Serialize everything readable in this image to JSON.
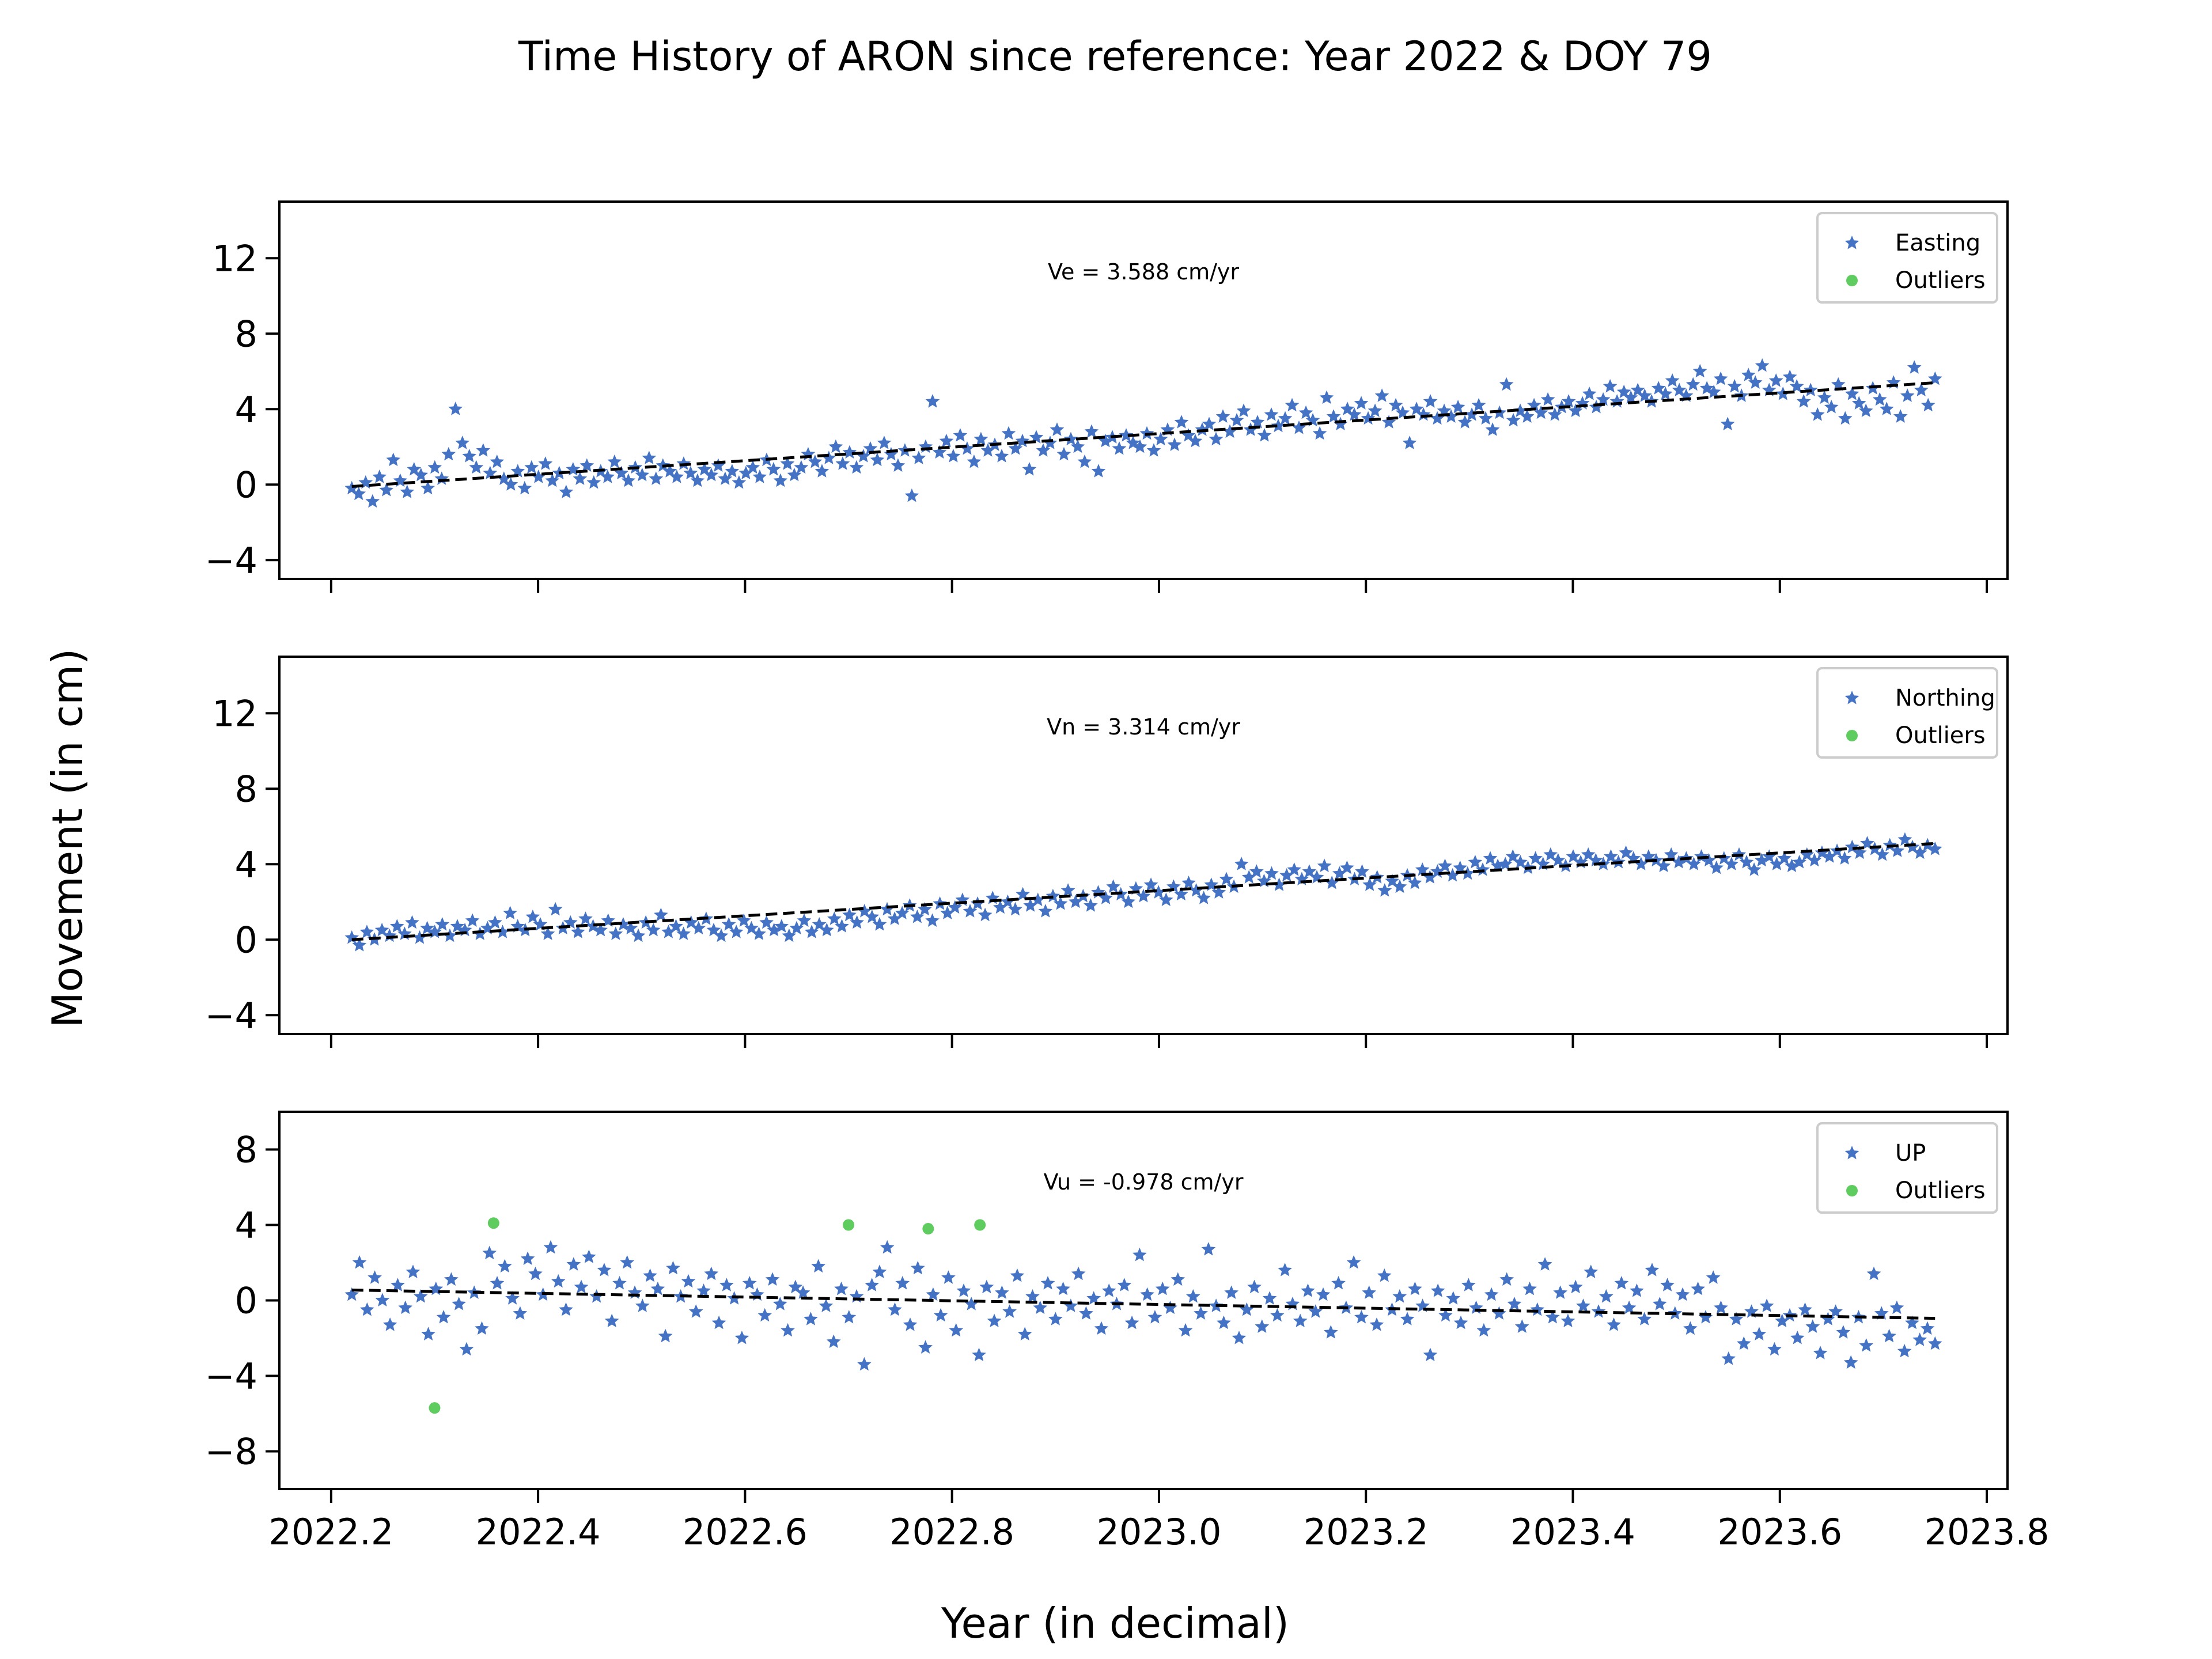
{
  "figure": {
    "title": "Time History of ARON since reference: Year 2022 & DOY 79",
    "xlabel": "Year (in decimal)",
    "ylabel": "Movement (in cm)"
  },
  "chart_data": [
    {
      "type": "scatter",
      "component": "east",
      "xlim": [
        2022.15,
        2023.82
      ],
      "ylim": [
        -5,
        15
      ],
      "yticks": [
        -4,
        0,
        4,
        8,
        12
      ],
      "ytick_labels": [
        "−4",
        "0",
        "4",
        "8",
        "12"
      ],
      "xticks": [
        2022.2,
        2022.4,
        2022.6,
        2022.8,
        2023.0,
        2023.2,
        2023.4,
        2023.6,
        2023.8
      ],
      "show_xtick_labels": false,
      "annotation": "Ve =  3.588 cm/yr",
      "legend": {
        "position": "top-right",
        "entries": [
          "Easting",
          "Outliers"
        ]
      },
      "series": [
        {
          "name": "Easting",
          "marker": "star",
          "color": "#4472c4",
          "x_start": 2022.22,
          "x_end": 2023.75,
          "values": [
            -0.2,
            -0.5,
            0.1,
            -0.9,
            0.4,
            -0.3,
            1.3,
            0.2,
            -0.4,
            0.8,
            0.5,
            -0.2,
            0.9,
            0.3,
            1.6,
            4.0,
            2.2,
            1.5,
            0.9,
            1.8,
            0.6,
            1.2,
            0.3,
            0.0,
            0.7,
            -0.2,
            0.9,
            0.4,
            1.1,
            0.2,
            0.6,
            -0.4,
            0.8,
            0.3,
            1.0,
            0.1,
            0.7,
            0.4,
            1.2,
            0.6,
            0.2,
            0.9,
            0.5,
            1.4,
            0.3,
            1.0,
            0.7,
            0.4,
            1.1,
            0.6,
            0.2,
            0.8,
            0.5,
            1.0,
            0.3,
            0.7,
            0.1,
            0.6,
            0.9,
            0.4,
            1.3,
            0.8,
            0.2,
            1.1,
            0.5,
            0.9,
            1.6,
            1.2,
            0.7,
            1.4,
            2.0,
            1.1,
            1.7,
            0.9,
            1.5,
            1.9,
            1.3,
            2.2,
            1.6,
            1.0,
            1.8,
            -0.6,
            1.4,
            2.0,
            4.4,
            1.7,
            2.3,
            1.5,
            2.6,
            1.9,
            1.2,
            2.4,
            1.8,
            2.1,
            1.5,
            2.7,
            1.9,
            2.3,
            0.8,
            2.5,
            1.8,
            2.2,
            2.9,
            1.6,
            2.4,
            2.0,
            1.2,
            2.8,
            0.7,
            2.3,
            2.5,
            1.9,
            2.6,
            2.2,
            2.0,
            2.7,
            1.8,
            2.4,
            2.9,
            2.1,
            3.3,
            2.6,
            2.3,
            2.9,
            3.2,
            2.4,
            3.6,
            2.8,
            3.4,
            3.9,
            2.9,
            3.3,
            2.6,
            3.7,
            3.1,
            3.5,
            4.2,
            3.0,
            3.8,
            3.4,
            2.7,
            4.6,
            3.6,
            3.2,
            4.0,
            3.7,
            4.3,
            3.5,
            3.9,
            4.7,
            3.3,
            4.2,
            3.8,
            2.2,
            4.0,
            3.7,
            4.4,
            3.5,
            3.9,
            3.6,
            4.1,
            3.3,
            3.7,
            4.2,
            3.5,
            2.9,
            3.8,
            5.3,
            3.4,
            3.9,
            3.6,
            4.2,
            3.8,
            4.5,
            3.7,
            4.1,
            4.4,
            3.9,
            4.3,
            4.8,
            4.1,
            4.5,
            5.2,
            4.4,
            4.9,
            4.6,
            5.0,
            4.7,
            4.4,
            5.1,
            4.8,
            5.5,
            5.0,
            4.7,
            5.3,
            6.0,
            5.1,
            4.9,
            5.6,
            3.2,
            5.2,
            4.7,
            5.8,
            5.4,
            6.3,
            5.0,
            5.5,
            4.8,
            5.7,
            5.2,
            4.4,
            5.0,
            3.7,
            4.6,
            4.1,
            5.3,
            3.5,
            4.8,
            4.3,
            3.9,
            5.1,
            4.5,
            4.0,
            5.4,
            3.6,
            4.7,
            6.2,
            5.0,
            4.2,
            5.6
          ]
        }
      ],
      "outliers": [],
      "trend": {
        "x": [
          2022.22,
          2023.75
        ],
        "y": [
          -0.1,
          5.4
        ],
        "style": "dashed",
        "color": "#000000"
      }
    },
    {
      "type": "scatter",
      "component": "north",
      "xlim": [
        2022.15,
        2023.82
      ],
      "ylim": [
        -5,
        15
      ],
      "yticks": [
        -4,
        0,
        4,
        8,
        12
      ],
      "ytick_labels": [
        "−4",
        "0",
        "4",
        "8",
        "12"
      ],
      "xticks": [
        2022.2,
        2022.4,
        2022.6,
        2022.8,
        2023.0,
        2023.2,
        2023.4,
        2023.6,
        2023.8
      ],
      "show_xtick_labels": false,
      "annotation": "Vn =  3.314 cm/yr",
      "legend": {
        "position": "top-right",
        "entries": [
          "Northing",
          "Outliers"
        ]
      },
      "series": [
        {
          "name": "Northing",
          "marker": "star",
          "color": "#4472c4",
          "x_start": 2022.22,
          "x_end": 2023.75,
          "values": [
            0.1,
            -0.3,
            0.4,
            0.0,
            0.5,
            0.2,
            0.7,
            0.3,
            0.9,
            0.1,
            0.6,
            0.4,
            0.8,
            0.2,
            0.7,
            0.5,
            1.0,
            0.3,
            0.6,
            0.9,
            0.4,
            1.4,
            0.7,
            0.5,
            1.2,
            0.8,
            0.3,
            1.6,
            0.6,
            0.9,
            0.4,
            1.1,
            0.7,
            0.5,
            1.0,
            0.3,
            0.8,
            0.6,
            0.2,
            0.9,
            0.5,
            1.3,
            0.4,
            0.7,
            0.3,
            0.9,
            0.6,
            1.1,
            0.5,
            0.2,
            0.8,
            0.4,
            1.0,
            0.6,
            0.3,
            0.9,
            0.5,
            0.7,
            0.2,
            0.6,
            1.0,
            0.4,
            0.8,
            0.5,
            1.1,
            0.7,
            1.3,
            0.9,
            1.5,
            1.2,
            0.8,
            1.6,
            1.1,
            1.4,
            1.8,
            1.2,
            1.6,
            1.0,
            1.9,
            1.4,
            1.7,
            2.1,
            1.5,
            1.9,
            1.3,
            2.2,
            1.7,
            2.0,
            1.6,
            2.4,
            1.8,
            2.1,
            1.5,
            2.3,
            1.9,
            2.6,
            2.0,
            2.3,
            1.8,
            2.5,
            2.2,
            2.8,
            2.4,
            2.0,
            2.7,
            2.3,
            2.9,
            2.5,
            2.1,
            2.8,
            2.4,
            3.0,
            2.6,
            2.2,
            2.9,
            2.5,
            3.2,
            2.8,
            4.0,
            3.3,
            3.6,
            3.1,
            3.5,
            2.9,
            3.4,
            3.7,
            3.2,
            3.6,
            3.3,
            3.9,
            3.0,
            3.5,
            3.8,
            3.2,
            3.6,
            2.9,
            3.3,
            2.6,
            3.1,
            2.8,
            3.4,
            3.0,
            3.7,
            3.3,
            3.6,
            3.9,
            3.4,
            3.8,
            3.5,
            4.1,
            3.7,
            4.3,
            3.9,
            4.0,
            4.4,
            4.1,
            3.8,
            4.3,
            4.0,
            4.5,
            4.2,
            3.9,
            4.4,
            4.1,
            4.5,
            4.2,
            4.0,
            4.4,
            4.1,
            4.6,
            4.3,
            4.0,
            4.4,
            4.2,
            3.9,
            4.5,
            4.1,
            4.3,
            4.0,
            4.4,
            4.2,
            3.8,
            4.3,
            4.0,
            4.5,
            4.1,
            3.7,
            4.2,
            4.4,
            4.0,
            4.3,
            3.9,
            4.1,
            4.5,
            4.2,
            4.6,
            4.4,
            4.7,
            4.3,
            4.9,
            4.6,
            5.1,
            4.8,
            4.5,
            5.0,
            4.7,
            5.3,
            4.9,
            4.6,
            5.0,
            4.8
          ]
        }
      ],
      "outliers": [],
      "trend": {
        "x": [
          2022.22,
          2023.75
        ],
        "y": [
          0.0,
          5.1
        ],
        "style": "dashed",
        "color": "#000000"
      }
    },
    {
      "type": "scatter",
      "component": "up",
      "xlim": [
        2022.15,
        2023.82
      ],
      "ylim": [
        -10,
        10
      ],
      "yticks": [
        -8,
        -4,
        0,
        4,
        8
      ],
      "ytick_labels": [
        "−8",
        "−4",
        "0",
        "4",
        "8"
      ],
      "xticks": [
        2022.2,
        2022.4,
        2022.6,
        2022.8,
        2023.0,
        2023.2,
        2023.4,
        2023.6,
        2023.8
      ],
      "xtick_labels": [
        "2022.2",
        "2022.4",
        "2022.6",
        "2022.8",
        "2023.0",
        "2023.2",
        "2023.4",
        "2023.6",
        "2023.8"
      ],
      "show_xtick_labels": true,
      "annotation": "Vu = -0.978 cm/yr",
      "legend": {
        "position": "top-right",
        "entries": [
          "UP",
          "Outliers"
        ]
      },
      "series": [
        {
          "name": "UP",
          "marker": "star",
          "color": "#4472c4",
          "x_start": 2022.22,
          "x_end": 2023.75,
          "values": [
            0.3,
            2.0,
            -0.5,
            1.2,
            0.0,
            -1.3,
            0.8,
            -0.4,
            1.5,
            0.2,
            -1.8,
            0.6,
            -0.9,
            1.1,
            -0.2,
            -2.6,
            0.4,
            -1.5,
            2.5,
            0.9,
            1.8,
            0.1,
            -0.7,
            2.2,
            1.4,
            0.3,
            2.8,
            1.0,
            -0.5,
            1.9,
            0.7,
            2.3,
            0.2,
            1.6,
            -1.1,
            0.9,
            2.0,
            0.4,
            -0.3,
            1.3,
            0.6,
            -1.9,
            1.7,
            0.2,
            1.0,
            -0.6,
            0.5,
            1.4,
            -1.2,
            0.8,
            0.1,
            -2.0,
            0.9,
            0.3,
            -0.8,
            1.1,
            -0.2,
            -1.6,
            0.7,
            0.4,
            -1.0,
            1.8,
            -0.3,
            -2.2,
            0.6,
            -0.9,
            0.2,
            -3.4,
            0.8,
            1.5,
            2.8,
            -0.5,
            0.9,
            -1.3,
            1.7,
            -2.5,
            0.3,
            -0.8,
            1.2,
            -1.6,
            0.5,
            -0.2,
            -2.9,
            0.7,
            -1.1,
            0.4,
            -0.6,
            1.3,
            -1.8,
            0.2,
            -0.4,
            0.9,
            -1.0,
            0.6,
            -0.3,
            1.4,
            -0.7,
            0.1,
            -1.5,
            0.5,
            -0.2,
            0.8,
            -1.2,
            2.4,
            0.3,
            -0.9,
            0.6,
            -0.4,
            1.1,
            -1.6,
            0.2,
            -0.7,
            2.7,
            -0.3,
            -1.2,
            0.4,
            -2.0,
            -0.5,
            0.7,
            -1.4,
            0.1,
            -0.8,
            1.6,
            -0.2,
            -1.1,
            0.5,
            -0.6,
            0.3,
            -1.7,
            0.9,
            -0.4,
            2.0,
            -0.9,
            0.4,
            -1.3,
            1.3,
            -0.5,
            0.2,
            -1.0,
            0.6,
            -0.3,
            -2.9,
            0.5,
            -0.8,
            0.1,
            -1.2,
            0.8,
            -0.4,
            -1.6,
            0.3,
            -0.7,
            1.1,
            -0.2,
            -1.4,
            0.6,
            -0.5,
            1.9,
            -0.9,
            0.4,
            -1.1,
            0.7,
            -0.3,
            1.5,
            -0.6,
            0.2,
            -1.3,
            0.9,
            -0.4,
            0.5,
            -1.0,
            1.6,
            -0.2,
            0.8,
            -0.7,
            0.3,
            -1.5,
            0.6,
            -0.9,
            1.2,
            -0.4,
            -3.1,
            -1.0,
            -2.3,
            -0.6,
            -1.8,
            -0.3,
            -2.6,
            -1.1,
            -0.8,
            -2.0,
            -0.5,
            -1.4,
            -2.8,
            -1.0,
            -0.6,
            -1.7,
            -3.3,
            -0.9,
            -2.4,
            1.4,
            -0.7,
            -1.9,
            -0.4,
            -2.7,
            -1.2,
            -2.1,
            -1.5,
            -2.3
          ]
        }
      ],
      "outliers": [
        {
          "x": 2022.3,
          "y": -5.7
        },
        {
          "x": 2022.357,
          "y": 4.1
        },
        {
          "x": 2022.7,
          "y": 4.0
        },
        {
          "x": 2022.777,
          "y": 3.8
        },
        {
          "x": 2022.827,
          "y": 4.0
        }
      ],
      "trend": {
        "x": [
          2022.22,
          2023.75
        ],
        "y": [
          0.55,
          -0.95
        ],
        "style": "dashed",
        "color": "#000000"
      }
    }
  ],
  "colors": {
    "points": "#4472c4",
    "outliers": "#5fcc5f",
    "trend": "#000000",
    "legend_border": "#cccccc"
  }
}
